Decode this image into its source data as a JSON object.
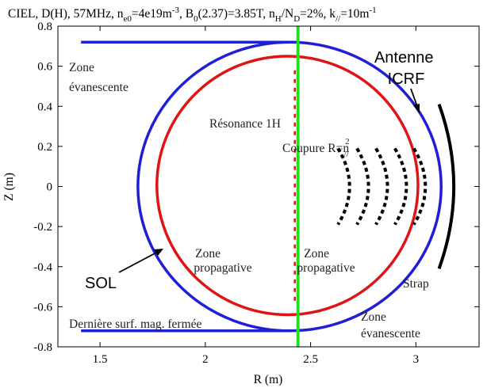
{
  "chart_data": {
    "type": "diagram",
    "title": {
      "lead": "CIEL, D(H), 57MHz, n",
      "lead_sub": "e0",
      "p1": "=4e19m",
      "p1_sup": "-3",
      "p2": ", B",
      "p2_sub": "0",
      "p3": "(2.37)=3.85T, n",
      "p3_sub": "H",
      "p4": "/N",
      "p4_sub": "D",
      "p5": "=2%, k",
      "p5_sub": "//",
      "p6": "=10m",
      "p6_sup": "-1"
    },
    "xlabel": "R (m)",
    "ylabel": "Z (m)",
    "xlim": [
      1.3,
      3.3
    ],
    "ylim": [
      -0.8,
      0.8
    ],
    "xticks": [
      1.5,
      2,
      2.5,
      3
    ],
    "xtick_labels": [
      "1.5",
      "2",
      "2.5",
      "3"
    ],
    "yticks": [
      0.8,
      0.6,
      0.4,
      0.2,
      0,
      -0.2,
      -0.4,
      -0.6,
      -0.8
    ],
    "ytick_labels": [
      "0.8",
      "0.6",
      "0.4",
      "0.2",
      "0",
      "-0.2",
      "-0.4",
      "-0.6",
      "-0.8"
    ],
    "last_closed_surface": {
      "color": "#1f1fd6",
      "center_r": 2.4,
      "center_z": 0,
      "radius_r": 0.72,
      "radius_z": 0.72,
      "leg_r_min": 1.41
    },
    "plasma_boundary": {
      "color": "#e01414",
      "center_r": 2.39,
      "center_z": 0.005,
      "radius_r": 0.62,
      "radius_z": 0.645
    },
    "resonance_line": {
      "color": "#22dd22",
      "r": 2.44
    },
    "resonance_dash": {
      "color": "#e01414",
      "r": 2.425,
      "z_min": -0.57,
      "z_max": 0.58
    },
    "cutoff_arcs": {
      "color": "#000000",
      "offsets_r": [
        2.63,
        2.72,
        2.81,
        2.9,
        2.99
      ],
      "bulge_r": 0.055,
      "z_half": 0.19
    },
    "antenna_strap": {
      "color": "#000000",
      "r_mid": 3.18,
      "r_end": 3.11,
      "z_half": 0.41
    },
    "labels": {
      "zone_evanescente_top": [
        "Zone",
        "évanescente"
      ],
      "zone_evanescente_bottom": [
        "Zone",
        "évanescente"
      ],
      "antenne": [
        "Antenne",
        "ICRF"
      ],
      "resonance": "Résonance 1H",
      "coupure": "Coupure R=n",
      "coupure_sup": "2",
      "coupure_sub": "//",
      "zone_propagative_left": [
        "Zone",
        "propagative"
      ],
      "zone_propagative_right": [
        "Zone",
        "propagative"
      ],
      "sol": "SOL",
      "derniere": "Dernière surf. mag. fermée",
      "strap": "Strap"
    }
  }
}
